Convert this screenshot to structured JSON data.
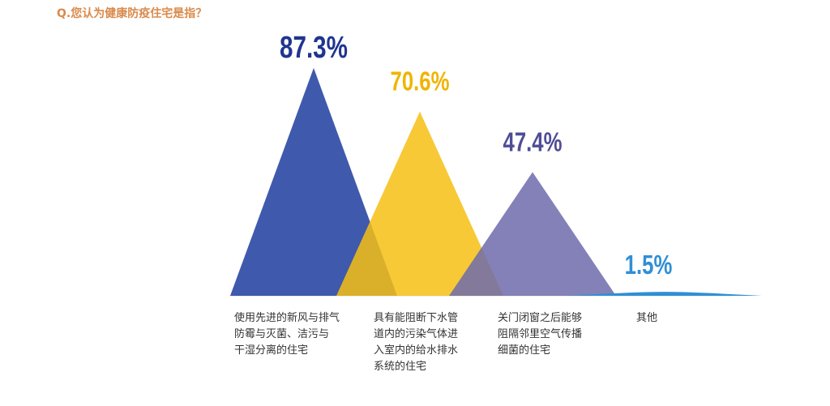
{
  "question": "Q.您认为健康防疫住宅是指？",
  "colors": {
    "question": "#d98a4b",
    "series": [
      "#3550a8",
      "#f6bf13",
      "#6f6bab",
      "#2f8fd6"
    ],
    "value_labels": [
      "#1f3590",
      "#f0b400",
      "#4f4d96",
      "#2f8fd6"
    ]
  },
  "chart_data": {
    "type": "bar",
    "shape": "triangle",
    "categories": [
      "使用先进的新风与排气\n防霉与灭菌、洁污与\n干湿分离的住宅",
      "具有能阻断下水管\n道内的污染气体进\n入室内的给水排水\n系统的住宅",
      "关门闭窗之后能够\n阻隔邻里空气传播\n细菌的住宅",
      "其他"
    ],
    "values": [
      87.3,
      70.6,
      47.4,
      1.5
    ],
    "value_labels": [
      "87.3%",
      "70.6%",
      "47.4%",
      "1.5%"
    ],
    "ylim": [
      0,
      100
    ],
    "grid": false
  }
}
